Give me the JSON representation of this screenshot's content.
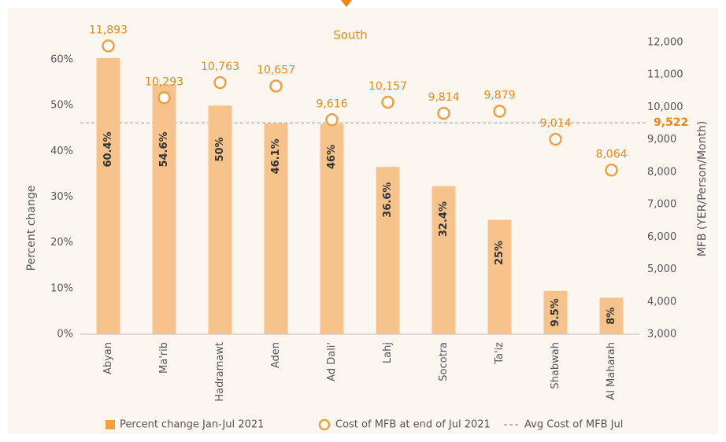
{
  "chart_data": {
    "type": "bar",
    "title": "South",
    "categories": [
      "Abyan",
      "Ma'rib",
      "Hadramawt",
      "Aden",
      "Ad Dali'",
      "Lahj",
      "Socotra",
      "Ta'iz",
      "Shabwah",
      "Al Maharah"
    ],
    "series": [
      {
        "name": "Percent change Jan-Jul 2021",
        "color": "#f7c38c",
        "values": [
          60.4,
          54.6,
          50,
          46.1,
          46,
          36.6,
          32.4,
          25,
          9.5,
          8
        ],
        "value_labels": [
          "60.4%",
          "54.6%",
          "50%",
          "46.1%",
          "46%",
          "36.6%",
          "32.4%",
          "25%",
          "9.5%",
          "8%"
        ]
      },
      {
        "name": "Cost of MFB at end of Jul 2021",
        "type": "scatter",
        "axis": "y2",
        "color": "#f0a040",
        "values": [
          11893,
          10293,
          10763,
          10657,
          9616,
          10157,
          9814,
          9879,
          9014,
          8064
        ],
        "value_labels": [
          "11,893",
          "10,293",
          "10,763",
          "10,657",
          "9,616",
          "10,157",
          "9,814",
          "9,879",
          "9,014",
          "8,064"
        ]
      }
    ],
    "reference_line": {
      "name": "Avg Cost of MFB Jul",
      "axis": "y2",
      "value": 9522,
      "label": "9,522",
      "color": "#999999"
    },
    "ylabel": "Percent change",
    "y2label": "MFB (YER/Person/Month)",
    "ylim": [
      0,
      63.8
    ],
    "yticks": [
      {
        "value": 0,
        "label": "0%"
      },
      {
        "value": 10,
        "label": "10%"
      },
      {
        "value": 20,
        "label": "20%"
      },
      {
        "value": 30,
        "label": "30%"
      },
      {
        "value": 40,
        "label": "40%"
      },
      {
        "value": 50,
        "label": "50%"
      },
      {
        "value": 60,
        "label": "60%"
      }
    ],
    "y2lim": [
      3000,
      12000
    ],
    "y2ticks": [
      {
        "value": 3000,
        "label": "3,000"
      },
      {
        "value": 4000,
        "label": "4,000"
      },
      {
        "value": 5000,
        "label": "5,000"
      },
      {
        "value": 6000,
        "label": "6,000"
      },
      {
        "value": 7000,
        "label": "7,000"
      },
      {
        "value": 8000,
        "label": "8,000"
      },
      {
        "value": 9000,
        "label": "9,000"
      },
      {
        "value": 10000,
        "label": "10,000"
      },
      {
        "value": 11000,
        "label": "11,000"
      },
      {
        "value": 12000,
        "label": "12,000"
      }
    ],
    "grid": false,
    "legend": "bottom"
  }
}
